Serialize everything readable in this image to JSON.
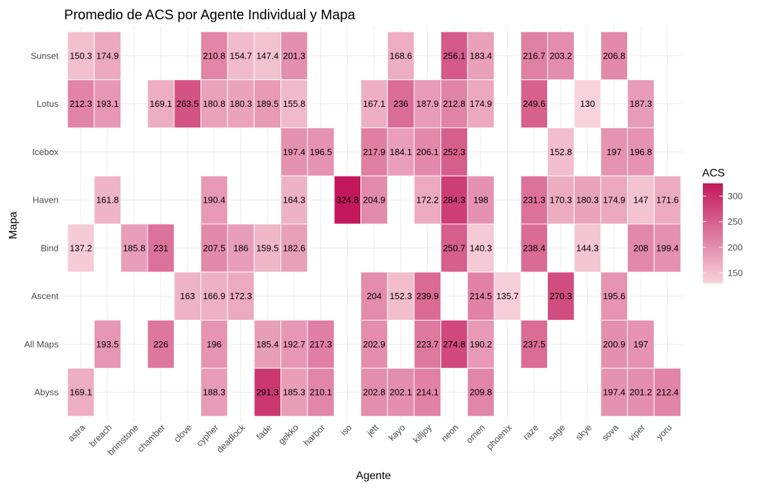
{
  "chart_data": {
    "type": "heatmap",
    "title": "Promedio de ACS por Agente Individual y Mapa",
    "xlabel": "Agente",
    "ylabel": "Mapa",
    "x_categories": [
      "astra",
      "breach",
      "brimstone",
      "chamber",
      "clove",
      "cypher",
      "deadlock",
      "fade",
      "gekko",
      "harbor",
      "iso",
      "jett",
      "kayo",
      "killjoy",
      "neon",
      "omen",
      "phoenix",
      "raze",
      "sage",
      "skye",
      "sova",
      "viper",
      "yoru"
    ],
    "y_categories": [
      "Sunset",
      "Lotus",
      "Icebox",
      "Haven",
      "Bind",
      "Ascent",
      "All Maps",
      "Abyss"
    ],
    "values": [
      [
        150.3,
        174.9,
        null,
        null,
        null,
        210.8,
        154.7,
        147.4,
        201.3,
        null,
        null,
        null,
        168.6,
        null,
        256.1,
        183.4,
        null,
        216.7,
        203.2,
        null,
        206.8,
        null,
        null
      ],
      [
        212.3,
        193.1,
        null,
        169.1,
        263.5,
        180.8,
        180.3,
        189.5,
        155.8,
        null,
        null,
        167.1,
        236,
        187.9,
        212.8,
        174.9,
        null,
        249.6,
        null,
        130,
        null,
        187.3,
        null
      ],
      [
        null,
        null,
        null,
        null,
        null,
        null,
        null,
        null,
        197.4,
        196.5,
        null,
        217.9,
        184.1,
        206.1,
        252.3,
        null,
        null,
        null,
        152.8,
        null,
        197,
        196.8,
        null
      ],
      [
        null,
        161.8,
        null,
        null,
        null,
        190.4,
        null,
        null,
        164.3,
        null,
        324.8,
        204.9,
        null,
        172.2,
        284.3,
        198,
        null,
        231.3,
        170.3,
        180.3,
        174.9,
        147,
        171.6
      ],
      [
        137.2,
        null,
        185.8,
        231,
        null,
        207.5,
        186,
        159.5,
        182.6,
        null,
        null,
        null,
        null,
        null,
        250.7,
        140.3,
        null,
        238.4,
        null,
        144.3,
        null,
        208,
        199.4
      ],
      [
        null,
        null,
        null,
        null,
        163,
        166.9,
        172.3,
        null,
        null,
        null,
        null,
        204,
        152.3,
        239.9,
        null,
        214.5,
        135.7,
        null,
        270.3,
        null,
        195.6,
        null,
        null
      ],
      [
        null,
        193.5,
        null,
        226,
        null,
        196,
        null,
        185.4,
        192.7,
        217.3,
        null,
        202.9,
        null,
        223.7,
        274.8,
        190.2,
        null,
        237.5,
        null,
        null,
        200.9,
        197,
        null
      ],
      [
        169.1,
        null,
        null,
        null,
        null,
        188.3,
        null,
        291.3,
        185.3,
        210.1,
        null,
        202.8,
        202.1,
        214.1,
        null,
        209.8,
        null,
        null,
        null,
        null,
        197.4,
        201.2,
        212.4
      ]
    ],
    "legend": {
      "title": "ACS",
      "ticks": [
        150,
        200,
        250,
        300
      ],
      "range": [
        130,
        324.8
      ],
      "color_low": "#f8d3dd",
      "color_high": "#c2185b",
      "placement": "right"
    },
    "grid": true
  }
}
